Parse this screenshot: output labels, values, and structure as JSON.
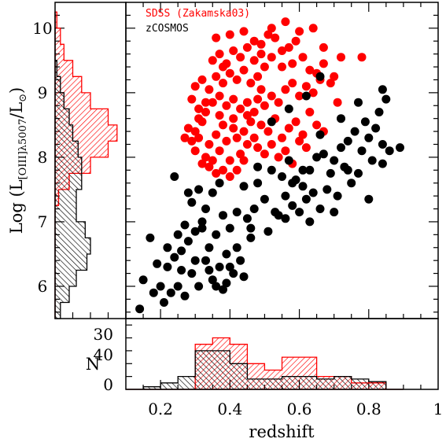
{
  "chart_data": [
    {
      "type": "scatter",
      "panel": "main",
      "xlabel": "redshift",
      "ylabel": "Log (L[OIII]λ5007/L⊙)",
      "xlim": [
        0.1,
        1.0
      ],
      "ylim": [
        5.5,
        10.4
      ],
      "x_ticks": [
        "0.2",
        "0.4",
        "0.6",
        "0.8",
        "1"
      ],
      "y_ticks": [
        "6",
        "7",
        "8",
        "9",
        "10"
      ],
      "legend_position": "top-left",
      "series": [
        {
          "name": "SDSS (Zakamska03)",
          "color": "#ff0000",
          "points": [
            [
              0.28,
              8.45
            ],
            [
              0.3,
              8.4
            ],
            [
              0.31,
              8.3
            ],
            [
              0.32,
              8.55
            ],
            [
              0.3,
              8.1
            ],
            [
              0.33,
              8.0
            ],
            [
              0.35,
              7.95
            ],
            [
              0.34,
              8.2
            ],
            [
              0.36,
              8.35
            ],
            [
              0.37,
              8.1
            ],
            [
              0.38,
              8.5
            ],
            [
              0.39,
              8.25
            ],
            [
              0.4,
              7.95
            ],
            [
              0.41,
              8.6
            ],
            [
              0.42,
              8.3
            ],
            [
              0.43,
              8.05
            ],
            [
              0.44,
              8.4
            ],
            [
              0.45,
              8.2
            ],
            [
              0.46,
              8.55
            ],
            [
              0.47,
              8.3
            ],
            [
              0.29,
              8.9
            ],
            [
              0.31,
              8.75
            ],
            [
              0.33,
              8.7
            ],
            [
              0.35,
              8.85
            ],
            [
              0.37,
              8.95
            ],
            [
              0.39,
              8.8
            ],
            [
              0.41,
              8.9
            ],
            [
              0.43,
              8.75
            ],
            [
              0.45,
              8.85
            ],
            [
              0.47,
              8.7
            ],
            [
              0.3,
              9.1
            ],
            [
              0.32,
              9.2
            ],
            [
              0.34,
              9.05
            ],
            [
              0.36,
              9.25
            ],
            [
              0.38,
              9.15
            ],
            [
              0.4,
              9.3
            ],
            [
              0.42,
              9.2
            ],
            [
              0.44,
              9.35
            ],
            [
              0.46,
              9.15
            ],
            [
              0.48,
              9.25
            ],
            [
              0.35,
              9.5
            ],
            [
              0.37,
              9.6
            ],
            [
              0.39,
              9.45
            ],
            [
              0.41,
              9.65
            ],
            [
              0.43,
              9.55
            ],
            [
              0.45,
              9.7
            ],
            [
              0.47,
              9.5
            ],
            [
              0.49,
              9.6
            ],
            [
              0.5,
              9.4
            ],
            [
              0.52,
              9.55
            ],
            [
              0.36,
              9.85
            ],
            [
              0.4,
              9.9
            ],
            [
              0.44,
              9.95
            ],
            [
              0.47,
              9.8
            ],
            [
              0.49,
              9.75
            ],
            [
              0.51,
              9.9
            ],
            [
              0.53,
              9.85
            ],
            [
              0.55,
              9.65
            ],
            [
              0.57,
              9.7
            ],
            [
              0.59,
              9.8
            ],
            [
              0.48,
              8.9
            ],
            [
              0.5,
              8.8
            ],
            [
              0.52,
              8.95
            ],
            [
              0.54,
              8.85
            ],
            [
              0.56,
              9.05
            ],
            [
              0.58,
              9.15
            ],
            [
              0.6,
              8.95
            ],
            [
              0.62,
              9.1
            ],
            [
              0.64,
              9.0
            ],
            [
              0.66,
              9.2
            ],
            [
              0.49,
              8.5
            ],
            [
              0.51,
              8.4
            ],
            [
              0.53,
              8.6
            ],
            [
              0.55,
              8.3
            ],
            [
              0.57,
              8.45
            ],
            [
              0.59,
              8.55
            ],
            [
              0.61,
              8.35
            ],
            [
              0.63,
              8.7
            ],
            [
              0.65,
              8.5
            ],
            [
              0.67,
              8.4
            ],
            [
              0.48,
              8.15
            ],
            [
              0.5,
              8.05
            ],
            [
              0.52,
              8.2
            ],
            [
              0.54,
              8.0
            ],
            [
              0.56,
              8.1
            ],
            [
              0.58,
              7.9
            ],
            [
              0.6,
              8.25
            ],
            [
              0.62,
              8.15
            ],
            [
              0.44,
              7.95
            ],
            [
              0.42,
              7.8
            ],
            [
              0.32,
              7.9
            ],
            [
              0.34,
              7.85
            ],
            [
              0.36,
              7.75
            ],
            [
              0.38,
              7.8
            ],
            [
              0.4,
              7.7
            ],
            [
              0.33,
              8.85
            ],
            [
              0.37,
              8.65
            ],
            [
              0.41,
              8.45
            ],
            [
              0.45,
              8.65
            ],
            [
              0.49,
              9.05
            ],
            [
              0.55,
              9.4
            ],
            [
              0.58,
              9.45
            ],
            [
              0.61,
              9.55
            ],
            [
              0.63,
              9.35
            ],
            [
              0.65,
              9.3
            ],
            [
              0.67,
              9.45
            ],
            [
              0.7,
              9.25
            ],
            [
              0.72,
              9.55
            ],
            [
              0.78,
              9.55
            ],
            [
              0.64,
              10.0
            ],
            [
              0.56,
              10.1
            ],
            [
              0.67,
              9.7
            ],
            [
              0.69,
              9.15
            ],
            [
              0.71,
              8.85
            ],
            [
              0.6,
              9.95
            ],
            [
              0.52,
              10.0
            ],
            [
              0.38,
              9.4
            ],
            [
              0.31,
              8.6
            ],
            [
              0.29,
              8.25
            ],
            [
              0.27,
              8.3
            ]
          ]
        },
        {
          "name": "zCOSMOS",
          "color": "#000000",
          "points": [
            [
              0.14,
              5.65
            ],
            [
              0.15,
              6.1
            ],
            [
              0.18,
              5.9
            ],
            [
              0.2,
              6.0
            ],
            [
              0.21,
              5.75
            ],
            [
              0.22,
              6.3
            ],
            [
              0.23,
              5.9
            ],
            [
              0.24,
              6.45
            ],
            [
              0.25,
              6.0
            ],
            [
              0.26,
              6.55
            ],
            [
              0.27,
              5.85
            ],
            [
              0.28,
              6.7
            ],
            [
              0.29,
              6.2
            ],
            [
              0.3,
              6.85
            ],
            [
              0.31,
              6.0
            ],
            [
              0.32,
              7.0
            ],
            [
              0.33,
              6.4
            ],
            [
              0.34,
              6.6
            ],
            [
              0.35,
              6.1
            ],
            [
              0.36,
              6.8
            ],
            [
              0.37,
              6.3
            ],
            [
              0.38,
              7.1
            ],
            [
              0.39,
              6.5
            ],
            [
              0.4,
              6.9
            ],
            [
              0.41,
              6.2
            ],
            [
              0.42,
              6.6
            ],
            [
              0.43,
              6.4
            ],
            [
              0.44,
              6.15
            ],
            [
              0.45,
              7.05
            ],
            [
              0.46,
              6.75
            ],
            [
              0.25,
              6.8
            ],
            [
              0.27,
              6.95
            ],
            [
              0.29,
              7.3
            ],
            [
              0.31,
              7.5
            ],
            [
              0.3,
              6.4
            ],
            [
              0.33,
              7.2
            ],
            [
              0.35,
              7.45
            ],
            [
              0.37,
              7.6
            ],
            [
              0.39,
              6.05
            ],
            [
              0.36,
              6.0
            ],
            [
              0.24,
              7.7
            ],
            [
              0.28,
              7.45
            ],
            [
              0.32,
              6.9
            ],
            [
              0.34,
              6.25
            ],
            [
              0.38,
              5.95
            ],
            [
              0.4,
              6.3
            ],
            [
              0.26,
              6.25
            ],
            [
              0.22,
              6.6
            ],
            [
              0.19,
              6.35
            ],
            [
              0.17,
              6.75
            ],
            [
              0.47,
              7.2
            ],
            [
              0.48,
              7.6
            ],
            [
              0.5,
              7.35
            ],
            [
              0.52,
              7.8
            ],
            [
              0.54,
              7.1
            ],
            [
              0.55,
              7.7
            ],
            [
              0.56,
              7.4
            ],
            [
              0.57,
              7.95
            ],
            [
              0.58,
              7.25
            ],
            [
              0.59,
              7.65
            ],
            [
              0.6,
              7.15
            ],
            [
              0.61,
              7.55
            ],
            [
              0.62,
              7.35
            ],
            [
              0.63,
              7.8
            ],
            [
              0.64,
              7.45
            ],
            [
              0.65,
              8.0
            ],
            [
              0.66,
              7.2
            ],
            [
              0.67,
              8.05
            ],
            [
              0.68,
              7.5
            ],
            [
              0.69,
              7.75
            ],
            [
              0.7,
              7.95
            ],
            [
              0.71,
              7.4
            ],
            [
              0.72,
              8.15
            ],
            [
              0.73,
              7.85
            ],
            [
              0.74,
              8.25
            ],
            [
              0.75,
              7.6
            ],
            [
              0.76,
              8.4
            ],
            [
              0.77,
              7.75
            ],
            [
              0.78,
              8.1
            ],
            [
              0.79,
              8.55
            ],
            [
              0.8,
              8.3
            ],
            [
              0.81,
              7.95
            ],
            [
              0.82,
              8.45
            ],
            [
              0.83,
              8.7
            ],
            [
              0.84,
              8.2
            ],
            [
              0.85,
              8.9
            ],
            [
              0.86,
              8.1
            ],
            [
              0.89,
              8.15
            ],
            [
              0.84,
              7.9
            ],
            [
              0.8,
              7.35
            ],
            [
              0.51,
              6.85
            ],
            [
              0.53,
              7.15
            ],
            [
              0.56,
              7.05
            ],
            [
              0.58,
              7.6
            ],
            [
              0.61,
              7.8
            ],
            [
              0.63,
              7.0
            ],
            [
              0.66,
              8.35
            ],
            [
              0.7,
              7.15
            ],
            [
              0.74,
              7.8
            ],
            [
              0.77,
              8.85
            ],
            [
              0.52,
              8.55
            ],
            [
              0.57,
              8.75
            ],
            [
              0.62,
              8.95
            ],
            [
              0.48,
              7.85
            ],
            [
              0.44,
              7.55
            ],
            [
              0.42,
              7.15
            ],
            [
              0.46,
              6.9
            ],
            [
              0.66,
              9.25
            ],
            [
              0.84,
              9.05
            ],
            [
              0.72,
              8.6
            ]
          ]
        }
      ]
    },
    {
      "type": "histogram",
      "panel": "bottom",
      "xlabel": "redshift",
      "ylabel": "N",
      "x_ticks": [
        "0.2",
        "0.4",
        "0.6",
        "0.8",
        "1"
      ],
      "y_ticks": [
        "0",
        "30",
        "40"
      ],
      "bin_edges": [
        0.1,
        0.15,
        0.2,
        0.25,
        0.3,
        0.35,
        0.4,
        0.45,
        0.5,
        0.55,
        0.6,
        0.65,
        0.7,
        0.75,
        0.8,
        0.85,
        0.9
      ],
      "series": [
        {
          "name": "SDSS (Zakamska03)",
          "color": "#ff0000",
          "counts": [
            0,
            0,
            0,
            0,
            35,
            40,
            35,
            20,
            15,
            25,
            25,
            10,
            10,
            5,
            5,
            0
          ]
        },
        {
          "name": "zCOSMOS",
          "color": "#000000",
          "counts": [
            0,
            2,
            5,
            10,
            30,
            30,
            20,
            8,
            8,
            10,
            10,
            8,
            10,
            8,
            6,
            0
          ]
        }
      ]
    },
    {
      "type": "histogram",
      "panel": "left",
      "orientation": "horizontal",
      "ylabel": "Log (L[OIII]λ5007/L⊙)",
      "bin_edges": [
        5.5,
        5.75,
        6.0,
        6.25,
        6.5,
        6.75,
        7.0,
        7.25,
        7.5,
        7.75,
        8.0,
        8.25,
        8.5,
        8.75,
        9.0,
        9.25,
        9.5,
        9.75,
        10.0,
        10.25
      ],
      "series": [
        {
          "name": "SDSS (Zakamska03)",
          "color": "#ff0000",
          "counts": [
            0,
            0,
            0,
            0,
            0,
            0,
            0,
            2,
            8,
            20,
            30,
            35,
            30,
            20,
            15,
            10,
            5,
            3,
            1
          ]
        },
        {
          "name": "zCOSMOS",
          "color": "#000000",
          "counts": [
            3,
            8,
            12,
            18,
            20,
            17,
            12,
            12,
            15,
            15,
            13,
            10,
            8,
            5,
            3,
            1,
            0,
            0,
            0
          ]
        }
      ]
    }
  ]
}
